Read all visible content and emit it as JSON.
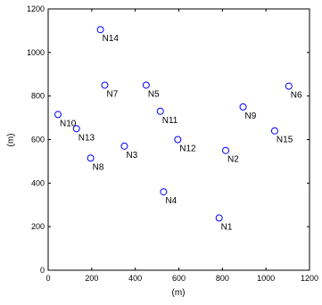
{
  "chart_data": {
    "type": "scatter",
    "title": "",
    "xlabel": "(m)",
    "ylabel": "(m)",
    "xlim": [
      0,
      1200
    ],
    "ylim": [
      0,
      1200
    ],
    "x_ticks": [
      0,
      200,
      400,
      600,
      800,
      1000,
      1200
    ],
    "y_ticks": [
      0,
      200,
      400,
      600,
      800,
      1000,
      1200
    ],
    "grid": false,
    "legend": "none",
    "marker": "circle",
    "marker_color": "#0000ff",
    "points": [
      {
        "label": "N1",
        "x": 785,
        "y": 240
      },
      {
        "label": "N2",
        "x": 815,
        "y": 550
      },
      {
        "label": "N3",
        "x": 350,
        "y": 570
      },
      {
        "label": "N4",
        "x": 530,
        "y": 360
      },
      {
        "label": "N5",
        "x": 450,
        "y": 850
      },
      {
        "label": "N6",
        "x": 1105,
        "y": 845
      },
      {
        "label": "N7",
        "x": 260,
        "y": 850
      },
      {
        "label": "N8",
        "x": 195,
        "y": 515
      },
      {
        "label": "N9",
        "x": 895,
        "y": 750
      },
      {
        "label": "N10",
        "x": 45,
        "y": 715
      },
      {
        "label": "N11",
        "x": 515,
        "y": 730
      },
      {
        "label": "N12",
        "x": 595,
        "y": 600
      },
      {
        "label": "N13",
        "x": 130,
        "y": 650
      },
      {
        "label": "N14",
        "x": 240,
        "y": 1105
      },
      {
        "label": "N15",
        "x": 1040,
        "y": 640
      }
    ]
  }
}
